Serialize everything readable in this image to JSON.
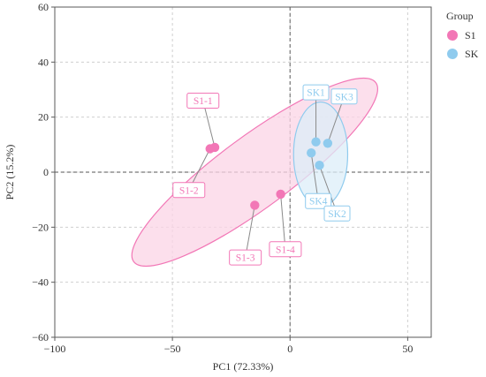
{
  "chart_data": {
    "type": "scatter",
    "title": "",
    "xlabel": "PC1 (72.33%)",
    "ylabel": "PC2 (15.2%)",
    "xlim": [
      -100,
      60
    ],
    "ylim": [
      -60,
      60
    ],
    "xticks": [
      -100,
      -50,
      0,
      50
    ],
    "yticks": [
      -60,
      -40,
      -20,
      0,
      20,
      40,
      60
    ],
    "grid": true,
    "zero_lines": true,
    "legend": {
      "title": "Group",
      "placement": "right-top"
    },
    "series": [
      {
        "name": "S1",
        "color": "#f277b6",
        "fill": "#fbd4e6",
        "points": [
          {
            "label": "S1-1",
            "x": -32,
            "y": 9,
            "label_x": -37,
            "label_y": 26
          },
          {
            "label": "S1-2",
            "x": -34,
            "y": 8.5,
            "label_x": -43,
            "label_y": -6.5
          },
          {
            "label": "S1-3",
            "x": -15,
            "y": -12,
            "label_x": -19,
            "label_y": -31
          },
          {
            "label": "S1-4",
            "x": -4,
            "y": -8,
            "label_x": -2,
            "label_y": -28
          }
        ],
        "ellipse": {
          "cx": -15,
          "cy": 0,
          "rx": 64,
          "ry": 13,
          "angle_deg": -36.5
        }
      },
      {
        "name": "SK",
        "color": "#8fcbee",
        "fill": "#dcedf8",
        "points": [
          {
            "label": "SK1",
            "x": 11,
            "y": 11,
            "label_x": 11,
            "label_y": 29
          },
          {
            "label": "SK3",
            "x": 16,
            "y": 10.5,
            "label_x": 23,
            "label_y": 27.5
          },
          {
            "label": "SK4",
            "x": 9,
            "y": 7,
            "label_x": 12,
            "label_y": -10.5
          },
          {
            "label": "SK2",
            "x": 12.5,
            "y": 2.5,
            "label_x": 20,
            "label_y": -15
          }
        ],
        "ellipse": {
          "cx": 13,
          "cy": 6.5,
          "rx": 11.5,
          "ry": 19,
          "angle_deg": 0
        }
      }
    ]
  }
}
